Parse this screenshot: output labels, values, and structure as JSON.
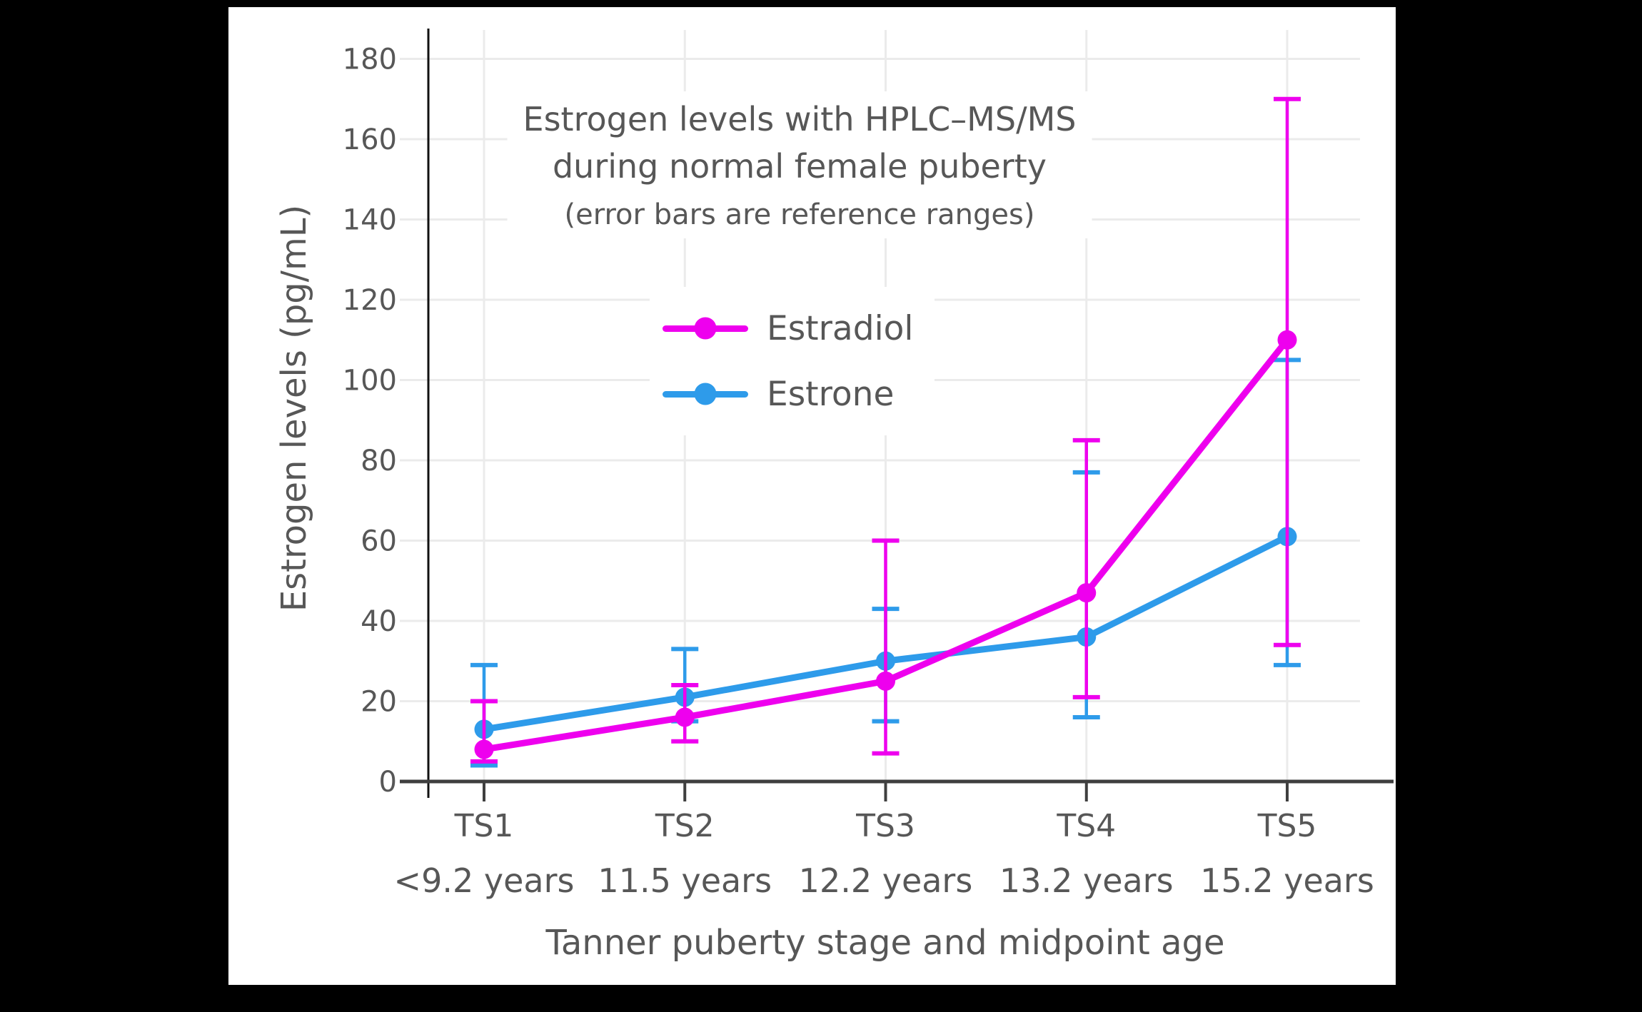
{
  "window": {
    "background": "#000000",
    "card_background": "#FFFFFF"
  },
  "chart_data": {
    "type": "line",
    "title": "Estrogen levels with HPLC–MS/MS during normal female puberty",
    "title_lines": [
      "Estrogen levels with HPLC–MS/MS",
      "during normal female puberty"
    ],
    "subtitle": "(error bars are reference ranges)",
    "xlabel": "Tanner puberty stage and midpoint age",
    "ylabel": "Estrogen levels (pg/mL)",
    "units": "pg/mL",
    "categories": [
      "TS1",
      "TS2",
      "TS3",
      "TS4",
      "TS5"
    ],
    "category_sublabels": [
      "<9.2 years",
      "11.5 years",
      "12.2 years",
      "13.2 years",
      "15.2 years"
    ],
    "y_ticks": [
      0,
      20,
      40,
      60,
      80,
      100,
      120,
      140,
      160,
      180
    ],
    "ylim": [
      0,
      187
    ],
    "grid": true,
    "legend_position": "inside top-center",
    "series": [
      {
        "name": "Estradiol",
        "color": "#EE00EE",
        "values": [
          8,
          16,
          25,
          47,
          110
        ],
        "error_low": [
          5,
          10,
          7,
          21,
          34
        ],
        "error_high": [
          20,
          24,
          60,
          85,
          170
        ]
      },
      {
        "name": "Estrone",
        "color": "#2E9BEA",
        "values": [
          13,
          21,
          30,
          36,
          61
        ],
        "error_low": [
          4,
          15,
          15,
          16,
          29
        ],
        "error_high": [
          29,
          33,
          43,
          77,
          105
        ]
      }
    ],
    "draw_order": [
      "Estrone",
      "Estradiol"
    ],
    "style": {
      "text_color": "#575757",
      "grid_color": "#EBEBEB",
      "x_axis_color": "#3F3F3F",
      "y_axis_color": "#111111"
    }
  }
}
